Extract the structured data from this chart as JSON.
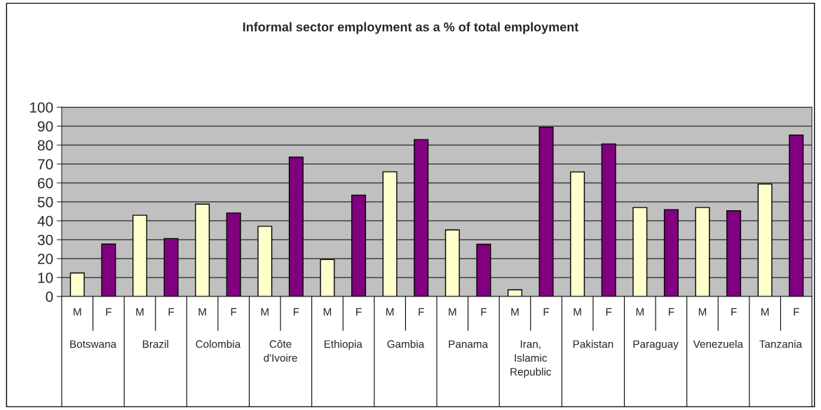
{
  "chart_data": {
    "type": "bar",
    "title": "Informal sector employment as a % of total employment",
    "categories": [
      "Botswana",
      "Brazil",
      "Colombia",
      "Côte\nd'Ivoire",
      "Ethiopia",
      "Gambia",
      "Panama",
      "Iran,\nIslamic\nRepublic",
      "Pakistan",
      "Paraguay",
      "Venezuela",
      "Tanzania"
    ],
    "series": [
      {
        "name": "M",
        "color": "#ffffcc",
        "values": [
          12.4,
          42.9,
          48.8,
          37.1,
          19.5,
          65.9,
          35.2,
          3.5,
          65.8,
          47.0,
          47.0,
          59.4
        ]
      },
      {
        "name": "F",
        "color": "#800080",
        "values": [
          27.7,
          30.6,
          44.1,
          73.6,
          53.5,
          82.9,
          27.6,
          89.4,
          80.6,
          45.9,
          45.3,
          85.3
        ]
      }
    ],
    "ylim": [
      0,
      100
    ],
    "yticks": [
      0,
      10,
      20,
      30,
      40,
      50,
      60,
      70,
      80,
      90,
      100
    ],
    "grid": "y",
    "legend": false
  }
}
